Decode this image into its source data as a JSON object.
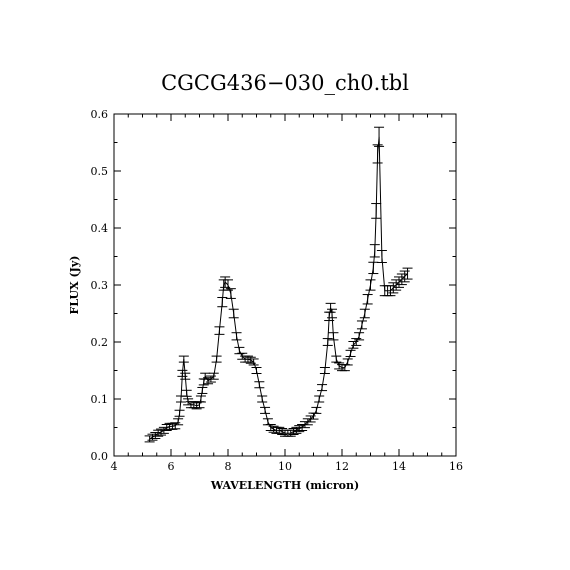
{
  "chart_data": {
    "type": "line",
    "title": "CGCG436−030_ch0.tbl",
    "xlabel": "WAVELENGTH (micron)",
    "ylabel": "FLUX (Jy)",
    "xlim": [
      4,
      16
    ],
    "ylim": [
      0.0,
      0.6
    ],
    "xticks": [
      "4",
      "6",
      "8",
      "10",
      "12",
      "14",
      "16"
    ],
    "yticks": [
      "0.0",
      "0.1",
      "0.2",
      "0.3",
      "0.4",
      "0.5",
      "0.6"
    ],
    "grid": false,
    "error_bars": true,
    "series": [
      {
        "x": [
          5.25,
          5.35,
          5.45,
          5.55,
          5.65,
          5.75,
          5.85,
          5.95,
          6.05,
          6.15,
          6.25,
          6.3,
          6.35,
          6.4,
          6.45,
          6.5,
          6.55,
          6.6,
          6.7,
          6.8,
          6.9,
          7.0,
          7.05,
          7.1,
          7.15,
          7.2,
          7.3,
          7.4,
          7.5,
          7.6,
          7.7,
          7.8,
          7.85,
          7.9,
          8.0,
          8.1,
          8.2,
          8.3,
          8.4,
          8.5,
          8.6,
          8.7,
          8.8,
          8.9,
          9.0,
          9.1,
          9.2,
          9.3,
          9.4,
          9.5,
          9.6,
          9.7,
          9.8,
          9.9,
          10.0,
          10.1,
          10.2,
          10.3,
          10.4,
          10.5,
          10.6,
          10.7,
          10.8,
          10.9,
          11.0,
          11.1,
          11.2,
          11.3,
          11.4,
          11.5,
          11.55,
          11.6,
          11.65,
          11.7,
          11.8,
          11.9,
          12.0,
          12.1,
          12.2,
          12.3,
          12.4,
          12.5,
          12.6,
          12.7,
          12.8,
          12.9,
          13.0,
          13.1,
          13.15,
          13.2,
          13.25,
          13.3,
          13.4,
          13.5,
          13.6,
          13.7,
          13.8,
          13.9,
          14.0,
          14.1,
          14.2,
          14.3
        ],
        "y": [
          0.03,
          0.033,
          0.036,
          0.04,
          0.042,
          0.045,
          0.05,
          0.052,
          0.052,
          0.053,
          0.06,
          0.075,
          0.1,
          0.145,
          0.17,
          0.14,
          0.11,
          0.095,
          0.09,
          0.09,
          0.088,
          0.09,
          0.1,
          0.115,
          0.13,
          0.14,
          0.132,
          0.135,
          0.14,
          0.17,
          0.22,
          0.27,
          0.3,
          0.305,
          0.3,
          0.285,
          0.25,
          0.21,
          0.185,
          0.175,
          0.17,
          0.17,
          0.168,
          0.165,
          0.15,
          0.125,
          0.1,
          0.08,
          0.06,
          0.05,
          0.047,
          0.045,
          0.045,
          0.043,
          0.04,
          0.04,
          0.04,
          0.043,
          0.045,
          0.048,
          0.05,
          0.055,
          0.06,
          0.065,
          0.07,
          0.08,
          0.1,
          0.12,
          0.15,
          0.2,
          0.245,
          0.26,
          0.25,
          0.21,
          0.17,
          0.158,
          0.155,
          0.155,
          0.165,
          0.18,
          0.195,
          0.2,
          0.21,
          0.23,
          0.25,
          0.275,
          0.3,
          0.33,
          0.36,
          0.43,
          0.53,
          0.56,
          0.35,
          0.29,
          0.29,
          0.29,
          0.295,
          0.3,
          0.305,
          0.31,
          0.315,
          0.32
        ]
      }
    ]
  }
}
